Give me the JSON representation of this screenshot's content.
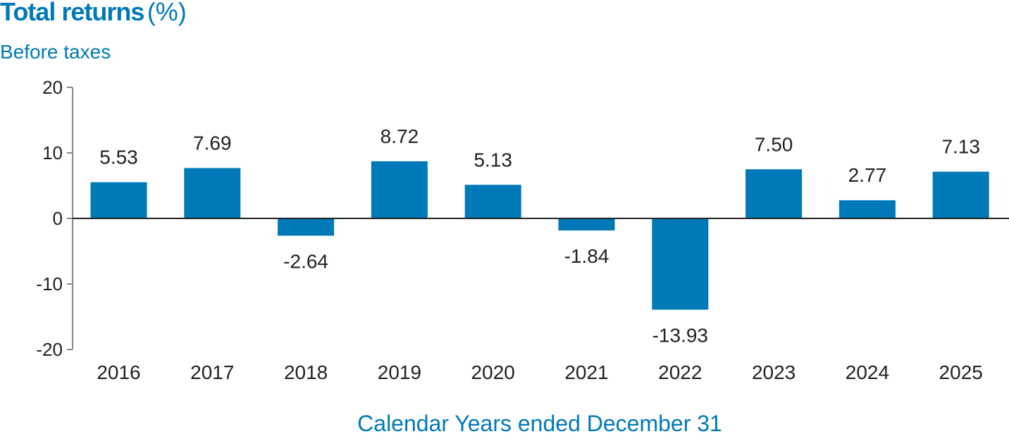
{
  "colors": {
    "accent": "#0079b8",
    "bar": "#0079b8",
    "axis": "#888888",
    "zero_line": "#222222",
    "text": "#222222"
  },
  "chart_data": {
    "type": "bar",
    "title": "Total returns",
    "title_unit": "(%)",
    "subtitle": "Before taxes",
    "xlabel": "Calendar Years ended December 31",
    "ylabel": "",
    "ylim": [
      -20,
      20
    ],
    "yticks": [
      "20",
      "10",
      "0",
      "-10",
      "-20"
    ],
    "ytick_values": [
      20,
      10,
      0,
      -10,
      -20
    ],
    "grid": false,
    "legend": "none",
    "categories": [
      "2016",
      "2017",
      "2018",
      "2019",
      "2020",
      "2021",
      "2022",
      "2023",
      "2024",
      "2025"
    ],
    "values": [
      5.53,
      7.69,
      -2.64,
      8.72,
      5.13,
      -1.84,
      -13.93,
      7.5,
      2.77,
      7.13
    ],
    "value_labels": [
      "5.53",
      "7.69",
      "-2.64",
      "8.72",
      "5.13",
      "-1.84",
      "-13.93",
      "7.50",
      "2.77",
      "7.13"
    ]
  }
}
